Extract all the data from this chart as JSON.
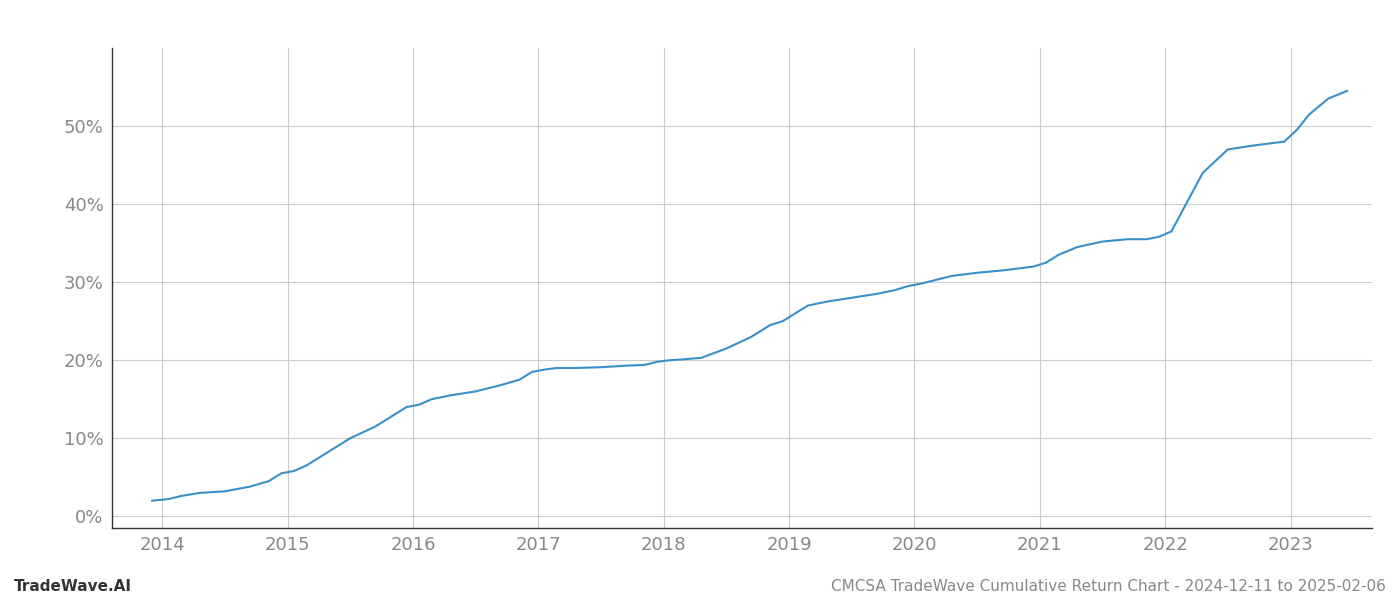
{
  "title": "CMCSA TradeWave Cumulative Return Chart - 2024-12-11 to 2025-02-06",
  "watermark": "TradeWave.AI",
  "line_color": "#3a8fc8",
  "background_color": "#ffffff",
  "grid_color": "#cccccc",
  "x_years": [
    2014,
    2015,
    2016,
    2017,
    2018,
    2019,
    2020,
    2021,
    2022,
    2023
  ],
  "y_ticks": [
    0,
    10,
    20,
    30,
    40,
    50
  ],
  "xlim": [
    2013.6,
    2023.65
  ],
  "ylim": [
    -1.5,
    60
  ],
  "data_x": [
    2013.92,
    2014.05,
    2014.15,
    2014.3,
    2014.5,
    2014.7,
    2014.85,
    2014.95,
    2015.05,
    2015.15,
    2015.3,
    2015.5,
    2015.7,
    2015.85,
    2015.95,
    2016.05,
    2016.15,
    2016.3,
    2016.5,
    2016.7,
    2016.85,
    2016.95,
    2017.05,
    2017.15,
    2017.3,
    2017.5,
    2017.7,
    2017.85,
    2017.95,
    2018.05,
    2018.15,
    2018.3,
    2018.5,
    2018.7,
    2018.85,
    2018.95,
    2019.05,
    2019.15,
    2019.3,
    2019.5,
    2019.7,
    2019.85,
    2019.95,
    2020.05,
    2020.15,
    2020.3,
    2020.5,
    2020.7,
    2020.85,
    2020.95,
    2021.05,
    2021.15,
    2021.3,
    2021.5,
    2021.7,
    2021.85,
    2021.95,
    2022.05,
    2022.15,
    2022.3,
    2022.5,
    2022.7,
    2022.85,
    2022.95,
    2023.05,
    2023.15,
    2023.3,
    2023.45
  ],
  "data_y": [
    2.0,
    2.2,
    2.6,
    3.0,
    3.2,
    3.8,
    4.5,
    5.5,
    5.8,
    6.5,
    8.0,
    10.0,
    11.5,
    13.0,
    14.0,
    14.3,
    15.0,
    15.5,
    16.0,
    16.8,
    17.5,
    18.5,
    18.8,
    19.0,
    19.0,
    19.1,
    19.3,
    19.4,
    19.8,
    20.0,
    20.1,
    20.3,
    21.5,
    23.0,
    24.5,
    25.0,
    26.0,
    27.0,
    27.5,
    28.0,
    28.5,
    29.0,
    29.5,
    29.8,
    30.2,
    30.8,
    31.2,
    31.5,
    31.8,
    32.0,
    32.5,
    33.5,
    34.5,
    35.2,
    35.5,
    35.5,
    35.8,
    36.5,
    39.5,
    44.0,
    47.0,
    47.5,
    47.8,
    48.0,
    49.5,
    51.5,
    53.5,
    54.5
  ],
  "title_fontsize": 11,
  "watermark_fontsize": 11,
  "tick_fontsize": 13,
  "tick_color": "#888888",
  "watermark_color": "#333333",
  "spine_color": "#333333",
  "left_spine_color": "#333333"
}
